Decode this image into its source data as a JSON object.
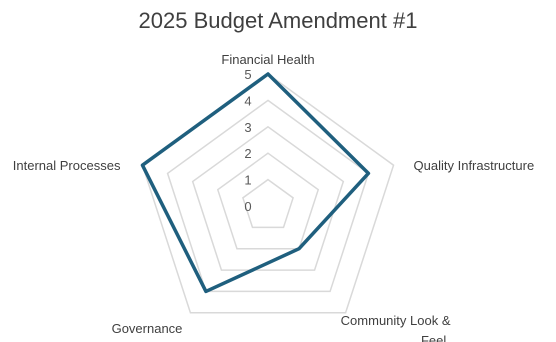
{
  "chart_data": {
    "type": "radar",
    "title": "2025 Budget Amendment #1",
    "categories": [
      "Financial Health",
      "Quality Infrastructure",
      "Community Look & Feel",
      "Governance",
      "Internal Processes"
    ],
    "series": [
      {
        "values": [
          5,
          4,
          2,
          4,
          5
        ]
      }
    ],
    "rlim": [
      0,
      5
    ],
    "ticks": [
      0,
      1,
      2,
      3,
      4,
      5
    ],
    "grid": true,
    "legend": "none",
    "colors": {
      "series": "#1f5f7e",
      "grid": "#d9d9d9",
      "text": "#3f3f3f"
    }
  }
}
